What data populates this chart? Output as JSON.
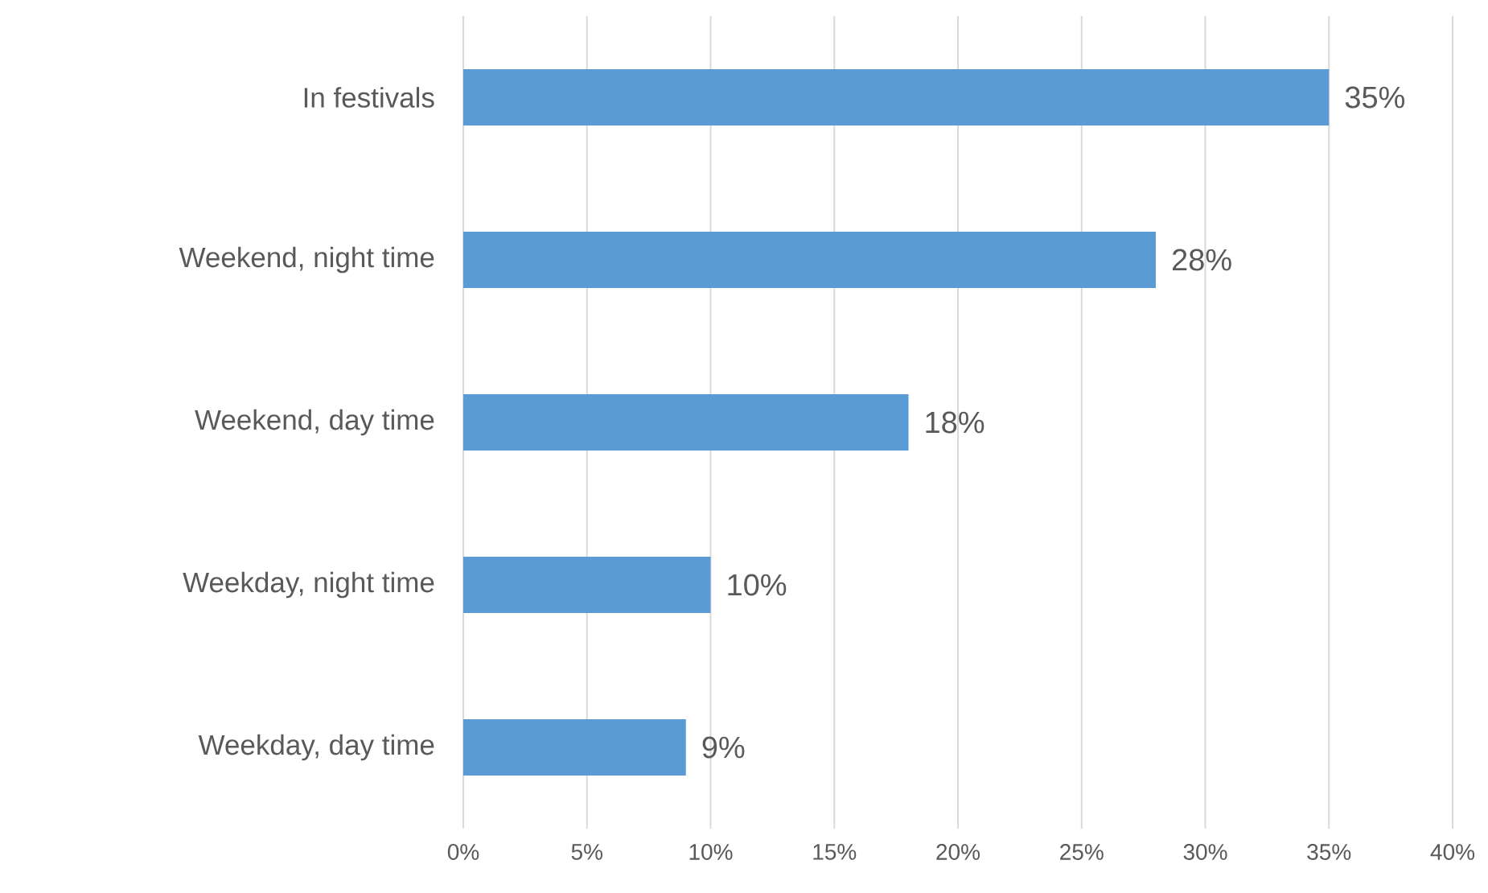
{
  "chart_data": {
    "type": "bar",
    "orientation": "horizontal",
    "categories": [
      "In festivals",
      "Weekend, night time",
      "Weekend, day time",
      "Weekday, night time",
      "Weekday, day time"
    ],
    "values": [
      35,
      28,
      18,
      10,
      9
    ],
    "value_labels": [
      "35%",
      "28%",
      "18%",
      "10%",
      "9%"
    ],
    "color": "#5b9bd5",
    "xlim": [
      0,
      40
    ],
    "xticks": [
      {
        "value": 0,
        "label": "0%"
      },
      {
        "value": 5,
        "label": "5%"
      },
      {
        "value": 10,
        "label": "10%"
      },
      {
        "value": 15,
        "label": "15%"
      },
      {
        "value": 20,
        "label": "20%"
      },
      {
        "value": 25,
        "label": "25%"
      },
      {
        "value": 30,
        "label": "30%"
      },
      {
        "value": 35,
        "label": "35%"
      },
      {
        "value": 40,
        "label": "40%"
      }
    ],
    "grid": "x"
  }
}
